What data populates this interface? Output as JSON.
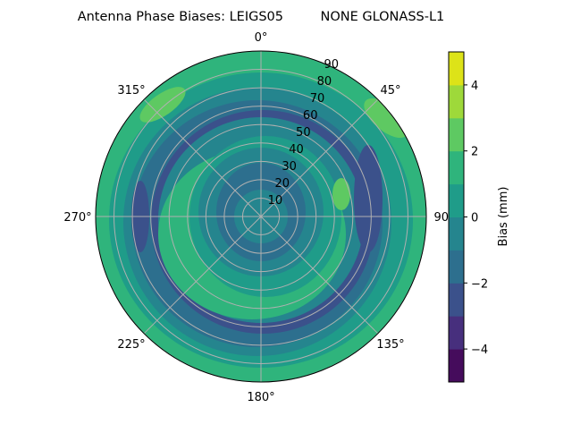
{
  "chart_data": {
    "type": "polar-contour",
    "title": "Antenna Phase Biases: LEIGS05         NONE GLONASS-L1",
    "angle_ticks": [
      "0°",
      "45°",
      "90°",
      "135°",
      "180°",
      "225°",
      "270°",
      "315°"
    ],
    "radial_ticks": [
      "10",
      "20",
      "30",
      "40",
      "50",
      "60",
      "70",
      "80",
      "90"
    ],
    "rlim": [
      0,
      90
    ],
    "grid": true,
    "colorbar": {
      "label": "Bias (mm)",
      "ticks": [
        "−4",
        "−2",
        "0",
        "2",
        "4"
      ],
      "range": [
        -5,
        5
      ],
      "levels": [
        -5,
        -4,
        -3,
        -2,
        -1,
        0,
        1,
        2,
        3,
        4,
        5
      ],
      "colors": [
        "#450c5c",
        "#472f7d",
        "#3b518b",
        "#2d6f8e",
        "#25858e",
        "#1f9c89",
        "#2fb47c",
        "#5ec962",
        "#9ed93a",
        "#dde318"
      ]
    }
  }
}
